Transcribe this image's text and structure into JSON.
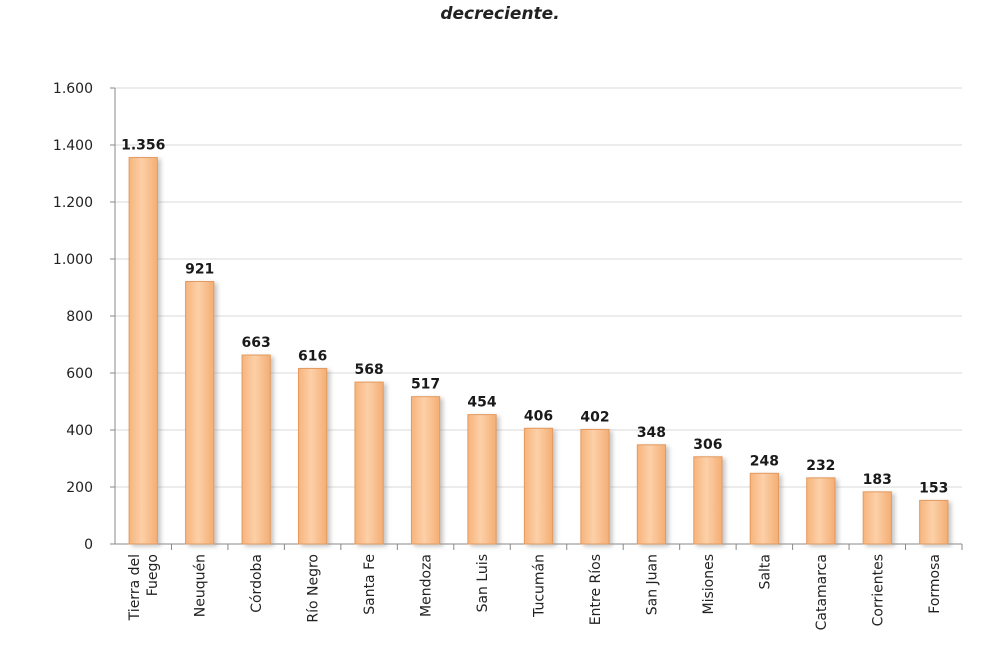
{
  "chart_data": {
    "type": "bar",
    "title": "decreciente.",
    "categories": [
      "Tierra del Fuego",
      "Neuquén",
      "Córdoba",
      "Río Negro",
      "Santa Fe",
      "Mendoza",
      "San Luis",
      "Tucumán",
      "Entre Ríos",
      "San Juan",
      "Misiones",
      "Salta",
      "Catamarca",
      "Corrientes",
      "Formosa"
    ],
    "values": [
      1356,
      921,
      663,
      616,
      568,
      517,
      454,
      406,
      402,
      348,
      306,
      248,
      232,
      183,
      153
    ],
    "value_labels": [
      "1.356",
      "921",
      "663",
      "616",
      "568",
      "517",
      "454",
      "406",
      "402",
      "348",
      "306",
      "248",
      "232",
      "183",
      "153"
    ],
    "ylim": [
      0,
      1600
    ],
    "yticks": [
      0,
      200,
      400,
      600,
      800,
      1000,
      1200,
      1400,
      1600
    ],
    "ytick_labels": [
      "0",
      "200",
      "400",
      "600",
      "800",
      "1.000",
      "1.200",
      "1.400",
      "1.600"
    ],
    "grid": true,
    "bar_color": "#F9BE8C",
    "bar_edge_color": "#E39A5E"
  }
}
